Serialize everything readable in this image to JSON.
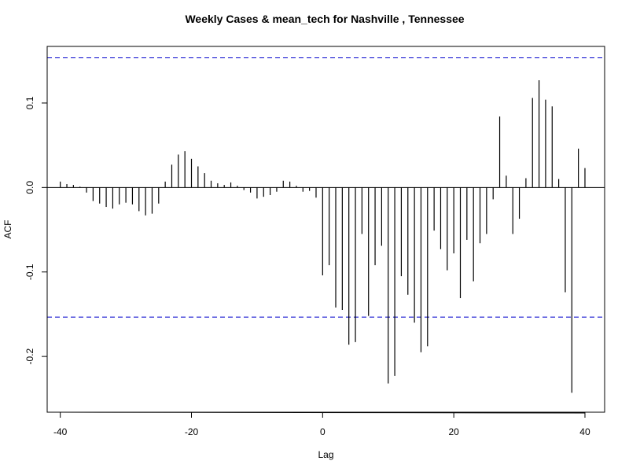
{
  "chart_data": {
    "type": "bar",
    "title": "Weekly Cases & mean_tech for Nashville , Tennessee",
    "xlabel": "Lag",
    "ylabel": "ACF",
    "xlim": [
      -42,
      43
    ],
    "ylim": [
      -0.266,
      0.167
    ],
    "x_ticks": [
      -40,
      -20,
      0,
      20,
      40
    ],
    "x_tick_labels": [
      "-40",
      "-20",
      "0",
      "20",
      "40"
    ],
    "y_ticks": [
      -0.2,
      -0.1,
      0.0,
      0.1
    ],
    "y_tick_labels": [
      "-0.2",
      "-0.1",
      "0.0",
      "0.1"
    ],
    "confidence_bounds": [
      0.1535,
      -0.1535
    ],
    "confidence_color": "#0000CC",
    "grid": false,
    "series": [
      {
        "lags": [
          -40,
          -39,
          -38,
          -37,
          -36,
          -35,
          -34,
          -33,
          -32,
          -31,
          -30,
          -29,
          -28,
          -27,
          -26,
          -25,
          -24,
          -23,
          -22,
          -21,
          -20,
          -19,
          -18,
          -17,
          -16,
          -15,
          -14,
          -13,
          -12,
          -11,
          -10,
          -9,
          -8,
          -7,
          -6,
          -5,
          -4,
          -3,
          -2,
          -1,
          0,
          1,
          2,
          3,
          4,
          5,
          6,
          7,
          8,
          9,
          10,
          11,
          12,
          13,
          14,
          15,
          16,
          17,
          18,
          19,
          20,
          21,
          22,
          23,
          24,
          25,
          26,
          27,
          28,
          29,
          30,
          31,
          32,
          33,
          34,
          35,
          36,
          37,
          38,
          39,
          40
        ],
        "values": [
          0.007,
          0.004,
          0.003,
          0.001,
          -0.006,
          -0.016,
          -0.019,
          -0.023,
          -0.025,
          -0.02,
          -0.018,
          -0.02,
          -0.028,
          -0.033,
          -0.031,
          -0.019,
          0.007,
          0.027,
          0.039,
          0.043,
          0.034,
          0.025,
          0.017,
          0.008,
          0.005,
          0.003,
          0.006,
          0.002,
          -0.003,
          -0.006,
          -0.013,
          -0.011,
          -0.009,
          -0.005,
          0.008,
          0.007,
          0.002,
          -0.005,
          -0.004,
          -0.012,
          -0.104,
          -0.092,
          -0.142,
          -0.145,
          -0.186,
          -0.183,
          -0.055,
          -0.152,
          -0.092,
          -0.069,
          -0.232,
          -0.223,
          -0.105,
          -0.127,
          -0.16,
          -0.195,
          -0.188,
          -0.051,
          -0.073,
          -0.098,
          -0.078,
          -0.131,
          -0.062,
          -0.111,
          -0.066,
          -0.055,
          -0.014,
          0.084,
          0.014,
          -0.055,
          -0.037,
          0.011,
          0.106,
          0.127,
          0.104,
          0.096,
          0.01,
          -0.124,
          -0.243,
          0.046,
          0.023
        ]
      }
    ]
  }
}
